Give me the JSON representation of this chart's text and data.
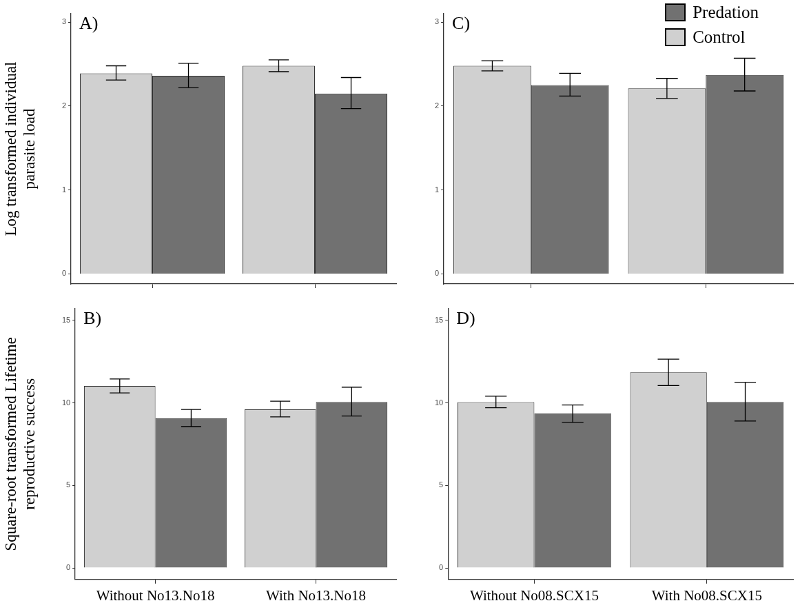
{
  "chart_data": [
    {
      "type": "bar",
      "title": "A)",
      "ylabel": "Log transformed individual parasite load",
      "categories": [
        null,
        null
      ],
      "series": [
        {
          "color": "#d0d0d0",
          "values": [
            2.39,
            2.48
          ],
          "errors": [
            [
              2.31,
              2.48
            ],
            [
              2.41,
              2.55
            ]
          ]
        },
        {
          "color": "#717171",
          "values": [
            2.36,
            2.15
          ],
          "errors": [
            [
              2.22,
              2.51
            ],
            [
              1.97,
              2.34
            ]
          ]
        }
      ],
      "ylim": [
        -0.12,
        3.1
      ],
      "yticks": [
        0,
        1,
        2,
        3
      ],
      "grid": false,
      "tick_labels": "y"
    },
    {
      "type": "bar",
      "title": "C)",
      "categories": [
        null,
        null
      ],
      "series": [
        {
          "name": "Control",
          "color": "#d0d0d0",
          "values": [
            2.48,
            2.21
          ],
          "errors": [
            [
              2.42,
              2.54
            ],
            [
              2.09,
              2.33
            ]
          ]
        },
        {
          "name": "Predation",
          "color": "#717171",
          "values": [
            2.25,
            2.37
          ],
          "errors": [
            [
              2.12,
              2.39
            ],
            [
              2.18,
              2.57
            ]
          ]
        }
      ],
      "ylim": [
        -0.12,
        3.1
      ],
      "yticks": [
        0,
        1,
        2,
        3
      ],
      "grid": false,
      "tick_labels": "y",
      "legend": "top right"
    },
    {
      "type": "bar",
      "title": "B)",
      "ylabel": "Square-root transformed Lifetime reproductive success",
      "categories": [
        "Without No13.No18",
        "With No13.No18"
      ],
      "series": [
        {
          "color": "#d0d0d0",
          "values": [
            11.02,
            9.6
          ],
          "errors": [
            [
              10.6,
              11.45
            ],
            [
              9.15,
              10.1
            ]
          ]
        },
        {
          "color": "#717171",
          "values": [
            9.07,
            10.05
          ],
          "errors": [
            [
              8.56,
              9.6
            ],
            [
              9.2,
              10.95
            ]
          ]
        }
      ],
      "ylim": [
        -0.7,
        15.7
      ],
      "yticks": [
        0,
        5,
        10,
        15
      ],
      "grid": false
    },
    {
      "type": "bar",
      "title": "D)",
      "categories": [
        "Without No08.SCX15",
        "With No08.SCX15"
      ],
      "series": [
        {
          "color": "#d0d0d0",
          "values": [
            10.04,
            11.85
          ],
          "errors": [
            [
              9.7,
              10.4
            ],
            [
              11.05,
              12.65
            ]
          ]
        },
        {
          "color": "#717171",
          "values": [
            9.36,
            10.05
          ],
          "errors": [
            [
              8.82,
              9.87
            ],
            [
              8.9,
              11.25
            ]
          ]
        }
      ],
      "ylim": [
        -0.7,
        15.7
      ],
      "yticks": [
        0,
        5,
        10,
        15
      ],
      "grid": false
    }
  ]
}
